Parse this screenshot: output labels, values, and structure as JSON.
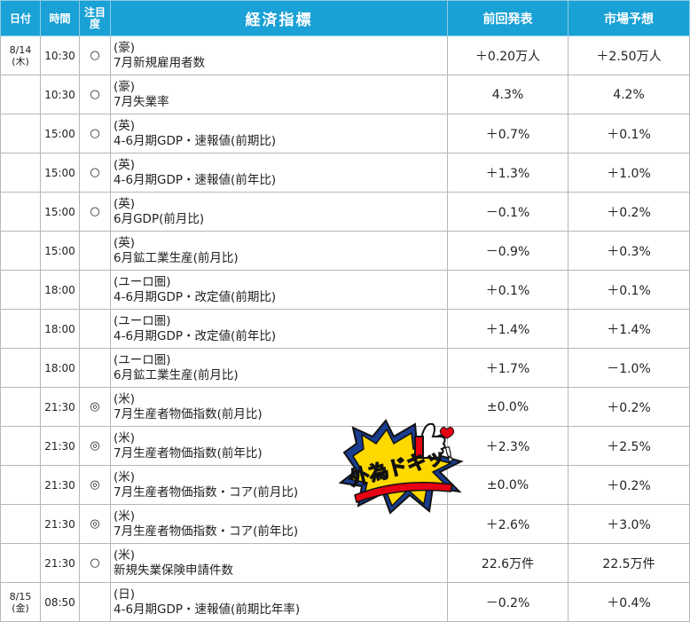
{
  "headers": {
    "date": "日付",
    "time": "時間",
    "attention_l1": "注目",
    "attention_l2": "度",
    "indicator": "経済指標",
    "previous": "前回発表",
    "forecast": "市場予想"
  },
  "rows": [
    {
      "date": "8/14",
      "day": "(木)",
      "time": "10:30",
      "mark": "○",
      "region": "(豪)",
      "name": "7月新規雇用者数",
      "previous": "＋0.20万人",
      "forecast": "＋2.50万人"
    },
    {
      "date": "",
      "day": "",
      "time": "10:30",
      "mark": "○",
      "region": "(豪)",
      "name": "7月失業率",
      "previous": "4.3%",
      "forecast": "4.2%"
    },
    {
      "date": "",
      "day": "",
      "time": "15:00",
      "mark": "○",
      "region": "(英)",
      "name": "4-6月期GDP・速報値(前期比)",
      "previous": "＋0.7%",
      "forecast": "＋0.1%"
    },
    {
      "date": "",
      "day": "",
      "time": "15:00",
      "mark": "○",
      "region": "(英)",
      "name": "4-6月期GDP・速報値(前年比)",
      "previous": "＋1.3%",
      "forecast": "＋1.0%"
    },
    {
      "date": "",
      "day": "",
      "time": "15:00",
      "mark": "○",
      "region": "(英)",
      "name": "6月GDP(前月比)",
      "previous": "－0.1%",
      "forecast": "＋0.2%"
    },
    {
      "date": "",
      "day": "",
      "time": "15:00",
      "mark": "",
      "region": "(英)",
      "name": "6月鉱工業生産(前月比)",
      "previous": "－0.9%",
      "forecast": "＋0.3%"
    },
    {
      "date": "",
      "day": "",
      "time": "18:00",
      "mark": "",
      "region": "(ユーロ圏)",
      "name": "4-6月期GDP・改定値(前期比)",
      "previous": "＋0.1%",
      "forecast": "＋0.1%"
    },
    {
      "date": "",
      "day": "",
      "time": "18:00",
      "mark": "",
      "region": "(ユーロ圏)",
      "name": "4-6月期GDP・改定値(前年比)",
      "previous": "＋1.4%",
      "forecast": "＋1.4%"
    },
    {
      "date": "",
      "day": "",
      "time": "18:00",
      "mark": "",
      "region": "(ユーロ圏)",
      "name": "6月鉱工業生産(前月比)",
      "previous": "＋1.7%",
      "forecast": "－1.0%"
    },
    {
      "date": "",
      "day": "",
      "time": "21:30",
      "mark": "◎",
      "region": "(米)",
      "name": "7月生産者物価指数(前月比)",
      "previous": "±0.0%",
      "forecast": "＋0.2%"
    },
    {
      "date": "",
      "day": "",
      "time": "21:30",
      "mark": "◎",
      "region": "(米)",
      "name": "7月生産者物価指数(前年比)",
      "previous": "＋2.3%",
      "forecast": "＋2.5%"
    },
    {
      "date": "",
      "day": "",
      "time": "21:30",
      "mark": "◎",
      "region": "(米)",
      "name": "7月生産者物価指数・コア(前月比)",
      "previous": "±0.0%",
      "forecast": "＋0.2%"
    },
    {
      "date": "",
      "day": "",
      "time": "21:30",
      "mark": "◎",
      "region": "(米)",
      "name": "7月生産者物価指数・コア(前年比)",
      "previous": "＋2.6%",
      "forecast": "＋3.0%"
    },
    {
      "date": "",
      "day": "",
      "time": "21:30",
      "mark": "○",
      "region": "(米)",
      "name": "新規失業保険申請件数",
      "previous": "22.6万件",
      "forecast": "22.5万件"
    },
    {
      "date": "8/15",
      "day": "(金)",
      "time": "08:50",
      "mark": "",
      "region": "(日)",
      "name": "4-6月期GDP・速報値(前期比年率)",
      "previous": "－0.2%",
      "forecast": "＋0.4%"
    }
  ],
  "logo": {
    "text": "外為ドキッ!",
    "icon": "thumbs-up-icon",
    "colors": {
      "yellow": "#ffd800",
      "red": "#e60012",
      "blue": "#1a3d8f",
      "outline": "#111111"
    }
  },
  "colors": {
    "header_bg": "#1aa1d6",
    "header_text": "#ffffff",
    "grid": "#b7b7b7"
  }
}
